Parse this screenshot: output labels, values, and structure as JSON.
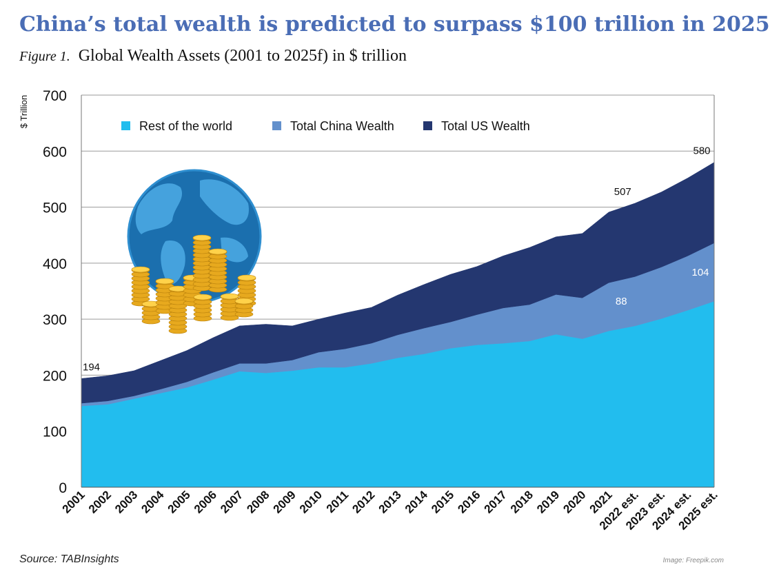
{
  "headline": "China’s total wealth is predicted to surpass $100 trillion in 2025",
  "subtitle": {
    "figure": "Figure 1.",
    "text": "Global Wealth Assets (2001 to 2025f) in $ trillion"
  },
  "source": "Source: TABInsights",
  "image_credit": "Image: Freepik.com",
  "colors": {
    "rest": "#22bdee",
    "china": "#6390cc",
    "us": "#243770",
    "headline": "#4a6db5"
  },
  "illustration": {
    "name": "globe-with-coins-icon"
  },
  "chart_data": {
    "type": "area",
    "stacked": true,
    "title": "Global Wealth Assets (2001 to 2025f) in $ trillion",
    "ylabel": "$ Trillion",
    "xlabel": "",
    "ylim": [
      0,
      700
    ],
    "yticks": [
      0,
      100,
      200,
      300,
      400,
      500,
      600,
      700
    ],
    "grid": true,
    "legend_position": "top",
    "categories": [
      "2001",
      "2002",
      "2003",
      "2004",
      "2005",
      "2006",
      "2007",
      "2008",
      "2009",
      "2010",
      "2011",
      "2012",
      "2013",
      "2014",
      "2015",
      "2016",
      "2017",
      "2018",
      "2019",
      "2020",
      "2021",
      "2022 est.",
      "2023 est.",
      "2024 est.",
      "2025 est."
    ],
    "series": [
      {
        "name": "Rest of the world",
        "color": "#22bdee",
        "values": [
          145,
          148,
          158,
          168,
          178,
          192,
          207,
          204,
          208,
          214,
          214,
          221,
          231,
          238,
          248,
          254,
          257,
          261,
          273,
          265,
          279,
          288,
          301,
          316,
          332
        ]
      },
      {
        "name": "Total China Wealth",
        "color": "#6390cc",
        "values": [
          5,
          6,
          5,
          7,
          10,
          13,
          14,
          17,
          19,
          27,
          33,
          36,
          41,
          46,
          47,
          54,
          63,
          65,
          71,
          73,
          86,
          88,
          92,
          97,
          104
        ]
      },
      {
        "name": "Total US Wealth",
        "color": "#243770",
        "values": [
          44,
          45,
          45,
          51,
          56,
          62,
          67,
          70,
          61,
          59,
          64,
          64,
          71,
          78,
          85,
          86,
          93,
          102,
          103,
          115,
          126,
          131,
          134,
          139,
          144
        ]
      }
    ],
    "annotations": [
      {
        "category": "2001",
        "label": "194",
        "series": "total"
      },
      {
        "category": "2022 est.",
        "label": "507",
        "series": "total"
      },
      {
        "category": "2025 est.",
        "label": "580",
        "series": "total"
      },
      {
        "category": "2022 est.",
        "label": "88",
        "series": "Total China Wealth"
      },
      {
        "category": "2025 est.",
        "label": "104",
        "series": "Total China Wealth"
      }
    ]
  }
}
